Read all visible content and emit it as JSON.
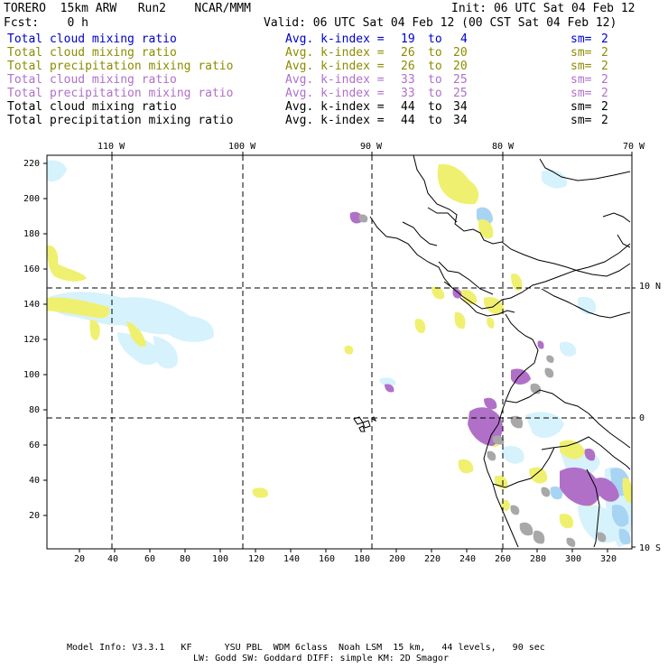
{
  "header": {
    "model": "TORERO  15km ARW   Run2    NCAR/MMM",
    "init": "Init: 06 UTC Sat 04 Feb 12",
    "fcst": "Fcst:    0 h",
    "valid": "Valid: 06 UTC Sat 04 Feb 12 (00 CST Sat 04 Feb 12)"
  },
  "legend": [
    {
      "field": "Total cloud mixing ratio",
      "k1": "19",
      "k2": "4",
      "sm": "2",
      "color": "#0000cc"
    },
    {
      "field": "Total cloud mixing ratio",
      "k1": "26",
      "k2": "20",
      "sm": "2",
      "color": "#8c8c00"
    },
    {
      "field": "Total precipitation mixing ratio",
      "k1": "26",
      "k2": "20",
      "sm": "2",
      "color": "#8c8c00"
    },
    {
      "field": "Total cloud mixing ratio",
      "k1": "33",
      "k2": "25",
      "sm": "2",
      "color": "#b070c8"
    },
    {
      "field": "Total precipitation mixing ratio",
      "k1": "33",
      "k2": "25",
      "sm": "2",
      "color": "#b070c8"
    },
    {
      "field": "Total cloud mixing ratio",
      "k1": "44",
      "k2": "34",
      "sm": "2",
      "color": "#000000"
    },
    {
      "field": "Total precipitation mixing ratio",
      "k1": "44",
      "k2": "34",
      "sm": "2",
      "color": "#000000"
    }
  ],
  "legend_labels": {
    "avg": "Avg. k-index =",
    "to": "to",
    "sm": "sm="
  },
  "lon_labels": [
    "110 W",
    "100 W",
    "90 W",
    "80 W",
    "70 W"
  ],
  "lat_labels": [
    "10 N",
    "0",
    "10 S"
  ],
  "y_ticks": [
    "220",
    "200",
    "180",
    "160",
    "140",
    "120",
    "100",
    "80",
    "60",
    "40",
    "20"
  ],
  "x_ticks": [
    "20",
    "40",
    "60",
    "80",
    "100",
    "120",
    "140",
    "160",
    "180",
    "200",
    "220",
    "240",
    "260",
    "280",
    "300",
    "320"
  ],
  "footer": {
    "line1": "Model Info: V3.3.1   KF      YSU PBL  WDM 6class  Noah LSM  15 km,   44 levels,   90 sec",
    "line2": "LW: Godd SW: Goddard DIFF: simple KM: 2D Smagor"
  },
  "colors": {
    "yellow": "#f0f070",
    "lightblue": "#d0f0fc",
    "blue": "#a8d4f4",
    "purple": "#b070c8",
    "gray": "#a8a8a8"
  }
}
